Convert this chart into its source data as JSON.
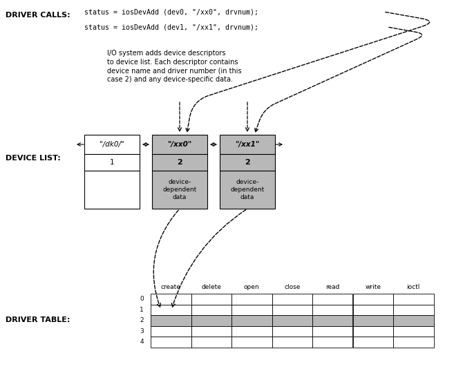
{
  "bg_color": "#ffffff",
  "light_gray": "#b8b8b8",
  "driver_calls_label": "DRIVER CALLS:",
  "code_line1": "status = iosDevAdd (dev0, \"/xx0\", drvnum);",
  "code_line2": "status = iosDevAdd (dev1, \"/xx1\", drvnum);",
  "annotation_text": "I/O system adds device descriptors\nto device list. Each descriptor contains\ndevice name and driver number (in this\ncase 2) and any device-specific data.",
  "device_list_label": "DEVICE LIST:",
  "driver_table_label": "DRIVER TABLE:",
  "device1_name": "\"/dk0/\"",
  "device1_num": "1",
  "device2_name": "\"/xx0\"",
  "device2_num": "2",
  "device2_data": "device-\ndependent\ndata",
  "device3_name": "\"/xx1\"",
  "device3_num": "2",
  "device3_data": "device-\ndependent\ndata",
  "table_cols": [
    "create",
    "delete",
    "open",
    "close",
    "read",
    "write",
    "ioctl"
  ],
  "table_rows": [
    "0",
    "1",
    "2",
    "3",
    "4"
  ],
  "highlighted_row": 2
}
